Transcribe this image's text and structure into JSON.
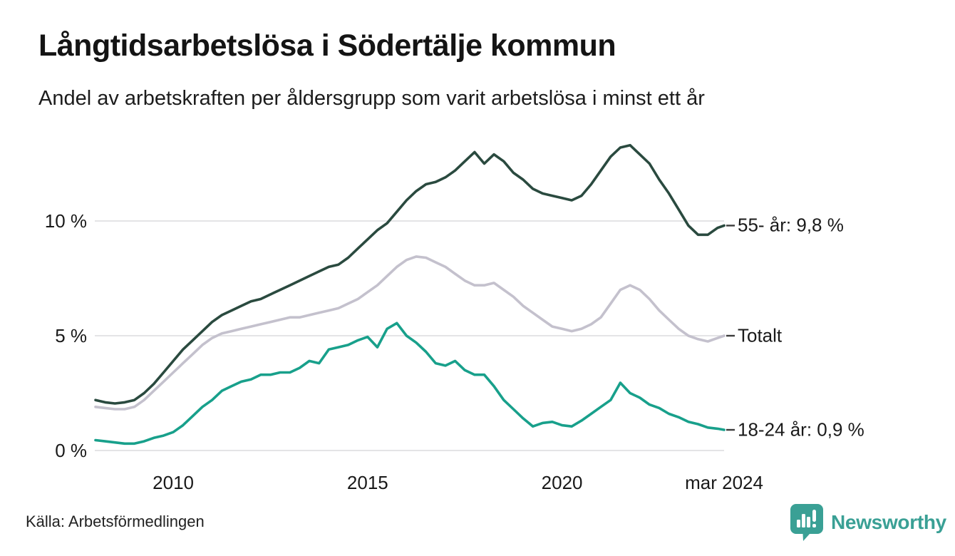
{
  "header": {
    "title": "Långtidsarbetslösa i Södertälje kommun",
    "subtitle": "Andel av arbetskraften per åldersgrupp som varit arbetslösa i minst ett år"
  },
  "chart_data": {
    "type": "line",
    "unit": "%",
    "grid": true,
    "legend_position": "right-end-labels",
    "x_axis": {
      "ticks": [
        {
          "value": 2010,
          "label": "2010"
        },
        {
          "value": 2015,
          "label": "2015"
        },
        {
          "value": 2020,
          "label": "2020"
        },
        {
          "value": 2024.17,
          "label": "mar 2024"
        }
      ],
      "range": [
        2008,
        2024.17
      ]
    },
    "y_axis": {
      "ticks": [
        {
          "value": 0,
          "label": "0 %"
        },
        {
          "value": 5,
          "label": "5 %"
        },
        {
          "value": 10,
          "label": "10 %"
        }
      ],
      "range": [
        0,
        13.6
      ]
    },
    "x": [
      2008,
      2008.25,
      2008.5,
      2008.75,
      2009,
      2009.25,
      2009.5,
      2009.75,
      2010,
      2010.25,
      2010.5,
      2010.75,
      2011,
      2011.25,
      2011.5,
      2011.75,
      2012,
      2012.25,
      2012.5,
      2012.75,
      2013,
      2013.25,
      2013.5,
      2013.75,
      2014,
      2014.25,
      2014.5,
      2014.75,
      2015,
      2015.25,
      2015.5,
      2015.75,
      2016,
      2016.25,
      2016.5,
      2016.75,
      2017,
      2017.25,
      2017.5,
      2017.75,
      2018,
      2018.25,
      2018.5,
      2018.75,
      2019,
      2019.25,
      2019.5,
      2019.75,
      2020,
      2020.25,
      2020.5,
      2020.75,
      2021,
      2021.25,
      2021.5,
      2021.75,
      2022,
      2022.25,
      2022.5,
      2022.75,
      2023,
      2023.25,
      2023.5,
      2023.75,
      2024,
      2024.17
    ],
    "series": [
      {
        "name": "Totalt",
        "end_label": "Totalt",
        "color": "#c4c1cd",
        "values": [
          1.9,
          1.85,
          1.8,
          1.8,
          1.9,
          2.2,
          2.6,
          3.0,
          3.4,
          3.8,
          4.2,
          4.6,
          4.9,
          5.1,
          5.2,
          5.3,
          5.4,
          5.5,
          5.6,
          5.7,
          5.8,
          5.8,
          5.9,
          6.0,
          6.1,
          6.2,
          6.4,
          6.6,
          6.9,
          7.2,
          7.6,
          8.0,
          8.3,
          8.45,
          8.4,
          8.2,
          8.0,
          7.7,
          7.4,
          7.2,
          7.2,
          7.3,
          7.0,
          6.7,
          6.3,
          6.0,
          5.7,
          5.4,
          5.3,
          5.2,
          5.3,
          5.5,
          5.8,
          6.4,
          7.0,
          7.2,
          7.0,
          6.6,
          6.1,
          5.7,
          5.3,
          5.0,
          4.85,
          4.75,
          4.9,
          5.0
        ]
      },
      {
        "name": "55- år",
        "end_label": "55- år: 9,8 %",
        "latest_value": "9,8 %",
        "color": "#2a4a3f",
        "values": [
          2.2,
          2.1,
          2.05,
          2.1,
          2.2,
          2.5,
          2.9,
          3.4,
          3.9,
          4.4,
          4.8,
          5.2,
          5.6,
          5.9,
          6.1,
          6.3,
          6.5,
          6.6,
          6.8,
          7.0,
          7.2,
          7.4,
          7.6,
          7.8,
          8.0,
          8.1,
          8.4,
          8.8,
          9.2,
          9.6,
          9.9,
          10.4,
          10.9,
          11.3,
          11.6,
          11.7,
          11.9,
          12.2,
          12.6,
          13.0,
          12.5,
          12.9,
          12.6,
          12.1,
          11.8,
          11.4,
          11.2,
          11.1,
          11.0,
          10.9,
          11.1,
          11.6,
          12.2,
          12.8,
          13.2,
          13.3,
          12.9,
          12.5,
          11.8,
          11.2,
          10.5,
          9.8,
          9.4,
          9.4,
          9.7,
          9.8
        ]
      },
      {
        "name": "18-24 år",
        "end_label": "18-24 år: 0,9 %",
        "latest_value": "0,9 %",
        "color": "#18a08b",
        "values": [
          0.45,
          0.4,
          0.35,
          0.3,
          0.3,
          0.4,
          0.55,
          0.65,
          0.8,
          1.1,
          1.5,
          1.9,
          2.2,
          2.6,
          2.8,
          3.0,
          3.1,
          3.3,
          3.3,
          3.4,
          3.4,
          3.6,
          3.9,
          3.8,
          4.4,
          4.5,
          4.6,
          4.8,
          4.95,
          4.5,
          5.3,
          5.55,
          5.0,
          4.7,
          4.3,
          3.8,
          3.7,
          3.9,
          3.5,
          3.3,
          3.3,
          2.8,
          2.2,
          1.8,
          1.4,
          1.05,
          1.2,
          1.25,
          1.1,
          1.05,
          1.3,
          1.6,
          1.9,
          2.2,
          2.95,
          2.5,
          2.3,
          2.0,
          1.85,
          1.6,
          1.45,
          1.25,
          1.15,
          1.0,
          0.95,
          0.9
        ]
      }
    ]
  },
  "style": {
    "grid_color": "#e4e4e6",
    "axis_text_color": "#191919",
    "end_tick_color": "#3c3c3c",
    "logo_color": "#3aa095"
  },
  "footer": {
    "source": "Källa: Arbetsförmedlingen",
    "logo_text": "Newsworthy"
  }
}
